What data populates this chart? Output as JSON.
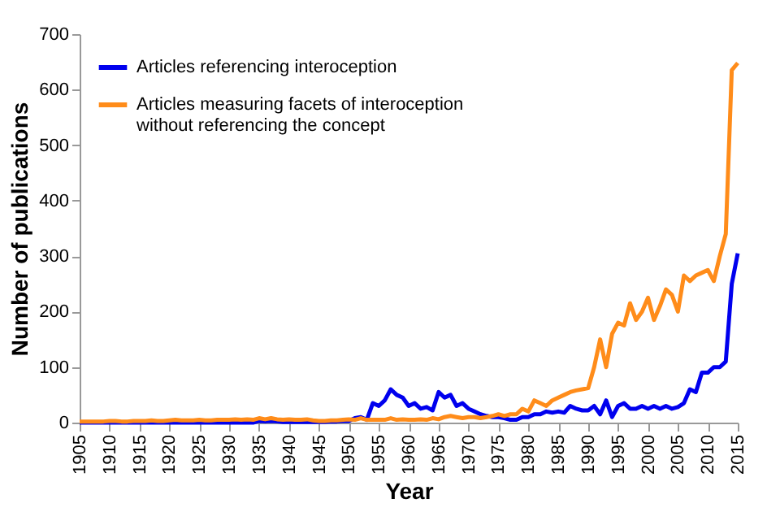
{
  "chart_data": {
    "type": "line",
    "xlabel": "Year",
    "ylabel": "Number of publications",
    "x": [
      1905,
      1906,
      1907,
      1908,
      1909,
      1910,
      1911,
      1912,
      1913,
      1914,
      1915,
      1916,
      1917,
      1918,
      1919,
      1920,
      1921,
      1922,
      1923,
      1924,
      1925,
      1926,
      1927,
      1928,
      1929,
      1930,
      1931,
      1932,
      1933,
      1934,
      1935,
      1936,
      1937,
      1938,
      1939,
      1940,
      1941,
      1942,
      1943,
      1944,
      1945,
      1946,
      1947,
      1948,
      1949,
      1950,
      1951,
      1952,
      1953,
      1954,
      1955,
      1956,
      1957,
      1958,
      1959,
      1960,
      1961,
      1962,
      1963,
      1964,
      1965,
      1966,
      1967,
      1968,
      1969,
      1970,
      1971,
      1972,
      1973,
      1974,
      1975,
      1976,
      1977,
      1978,
      1979,
      1980,
      1981,
      1982,
      1983,
      1984,
      1985,
      1986,
      1987,
      1988,
      1989,
      1990,
      1991,
      1992,
      1993,
      1994,
      1995,
      1996,
      1997,
      1998,
      1999,
      2000,
      2001,
      2002,
      2003,
      2004,
      2005,
      2006,
      2007,
      2008,
      2009,
      2010,
      2011,
      2012,
      2013,
      2014,
      2015
    ],
    "series": [
      {
        "name": "Articles referencing interoception",
        "color": "#0000ee",
        "values": [
          0,
          0,
          0,
          0,
          0,
          0,
          0,
          0,
          0,
          0,
          0,
          0,
          0,
          0,
          0,
          0,
          0,
          0,
          0,
          0,
          0,
          0,
          0,
          0,
          0,
          0,
          0,
          0,
          0,
          0,
          3,
          2,
          3,
          2,
          1,
          1,
          1,
          1,
          1,
          1,
          1,
          1,
          2,
          2,
          3,
          3,
          8,
          10,
          5,
          35,
          30,
          40,
          60,
          50,
          45,
          30,
          35,
          25,
          28,
          22,
          55,
          45,
          50,
          30,
          35,
          25,
          20,
          15,
          12,
          10,
          10,
          8,
          5,
          5,
          10,
          10,
          15,
          15,
          20,
          18,
          20,
          18,
          30,
          25,
          22,
          22,
          30,
          15,
          40,
          10,
          30,
          35,
          25,
          25,
          30,
          25,
          30,
          25,
          30,
          25,
          28,
          35,
          60,
          55,
          90,
          90,
          100,
          100,
          110,
          250,
          305
        ]
      },
      {
        "name": "Articles measuring facets of interoception without referencing the concept",
        "color": "#ff8c1a",
        "values": [
          2,
          2,
          2,
          2,
          2,
          3,
          3,
          2,
          2,
          3,
          3,
          3,
          4,
          3,
          3,
          4,
          5,
          4,
          4,
          4,
          5,
          4,
          4,
          5,
          5,
          5,
          6,
          5,
          6,
          5,
          8,
          6,
          8,
          6,
          5,
          6,
          5,
          5,
          6,
          4,
          3,
          3,
          4,
          4,
          5,
          6,
          5,
          8,
          5,
          5,
          5,
          5,
          8,
          5,
          6,
          5,
          5,
          6,
          5,
          8,
          6,
          10,
          12,
          10,
          8,
          10,
          10,
          8,
          10,
          12,
          15,
          12,
          15,
          15,
          25,
          20,
          40,
          35,
          30,
          40,
          45,
          50,
          55,
          58,
          60,
          62,
          100,
          150,
          100,
          160,
          180,
          175,
          215,
          185,
          200,
          225,
          185,
          210,
          240,
          230,
          200,
          265,
          255,
          265,
          270,
          275,
          255,
          300,
          340,
          635,
          648
        ]
      }
    ],
    "xlim": [
      1905,
      2015
    ],
    "xticks": [
      1905,
      1910,
      1915,
      1920,
      1925,
      1930,
      1935,
      1940,
      1945,
      1950,
      1955,
      1960,
      1965,
      1970,
      1975,
      1980,
      1985,
      1990,
      1995,
      2000,
      2005,
      2010,
      2015
    ],
    "ylim": [
      0,
      700
    ],
    "yticks": [
      0,
      100,
      200,
      300,
      400,
      500,
      600,
      700
    ],
    "grid": false,
    "legend": "top left",
    "marker": "none",
    "line_style": "solid"
  }
}
